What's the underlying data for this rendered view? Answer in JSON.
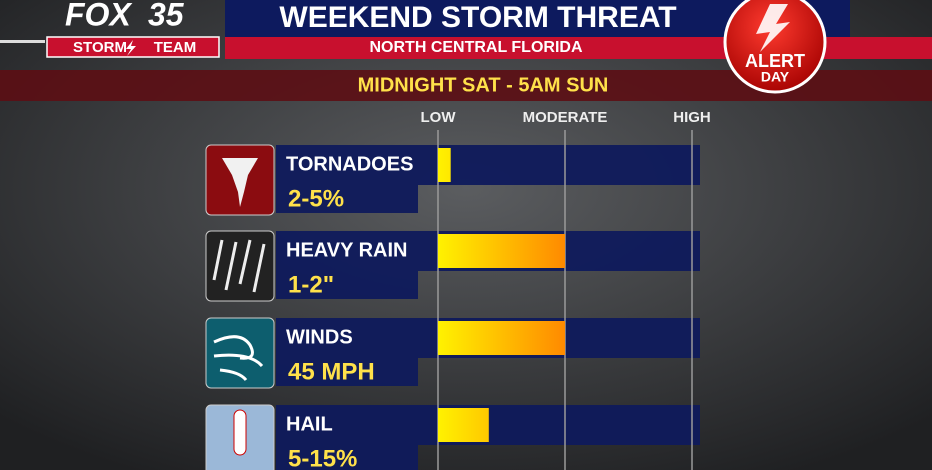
{
  "branding": {
    "station": "FOX",
    "channel": "35",
    "team_left": "STORM",
    "team_right": "TEAM",
    "alert": "ALERT",
    "alert_sub": "DAY"
  },
  "chart_data": {
    "type": "bar",
    "orientation": "horizontal",
    "title": "WEEKEND STORM THREAT",
    "subtitle": "NORTH CENTRAL FLORIDA",
    "time_range": "MIDNIGHT SAT - 5AM SUN",
    "categories": [
      "TORNADOES",
      "HEAVY RAIN",
      "WINDS",
      "HAIL"
    ],
    "details": [
      "2-5%",
      "1-2\"",
      "45 MPH",
      "5-15%"
    ],
    "values": [
      0.1,
      1.0,
      1.0,
      0.4
    ],
    "xlim": [
      0,
      2
    ],
    "xticks": [
      {
        "value": 0,
        "label": "LOW"
      },
      {
        "value": 1,
        "label": "MODERATE"
      },
      {
        "value": 2,
        "label": "HIGH"
      }
    ],
    "grid": true
  }
}
